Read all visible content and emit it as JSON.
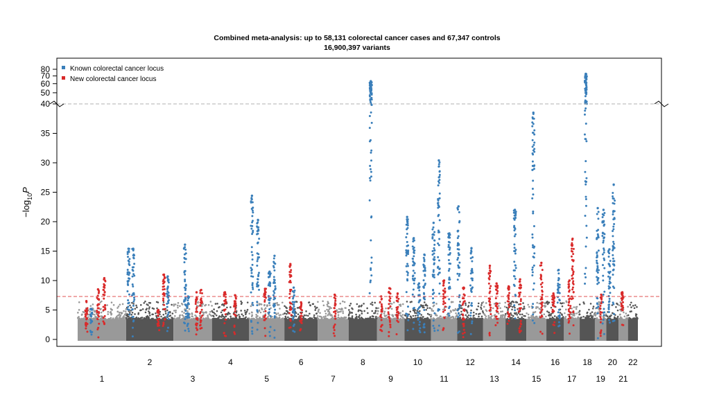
{
  "chart_data": {
    "type": "scatter",
    "subtype": "manhattan",
    "title": "Combined meta-analysis: up to 58,131 colorectal cancer cases and 67,347 controls",
    "subtitle": "16,900,397 variants",
    "ylabel_main": "−log",
    "ylabel_sub": "10",
    "ylabel_tail": "P",
    "y_lower_ticks": [
      "0",
      "5",
      "10",
      "15",
      "20",
      "25",
      "30",
      "35",
      "40"
    ],
    "y_lower_values": [
      0,
      5,
      10,
      15,
      20,
      25,
      30,
      35,
      40
    ],
    "y_upper_ticks": [
      "40",
      "50",
      "60",
      "70",
      "80"
    ],
    "y_upper_values": [
      40,
      50,
      60,
      70,
      80
    ],
    "y_break": 40,
    "y_scale_upper": "log",
    "significance_threshold": 7.3,
    "chromosomes_top": [
      "2",
      "4",
      "6",
      "8",
      "10",
      "12",
      "14",
      "16",
      "18",
      "20",
      "22"
    ],
    "chromosomes_bottom": [
      "1",
      "3",
      "5",
      "7",
      "9",
      "11",
      "13",
      "15",
      "17",
      "19",
      "21"
    ],
    "chromosome_colors": [
      "#999999",
      "#555555"
    ],
    "legend": {
      "position": "top-left",
      "entries": [
        {
          "label": "Known colorectal cancer locus",
          "color": "#3a7fba"
        },
        {
          "label": "New colorectal cancer locus",
          "color": "#d92a2a"
        }
      ]
    },
    "colors": {
      "known": "#3a7fba",
      "new": "#d92a2a",
      "threshold": "#e05050",
      "break_line": "#b0b0b0"
    },
    "loci": [
      {
        "chr": 1,
        "pos": 0.18,
        "p": 6.5,
        "type": "new"
      },
      {
        "chr": 1,
        "pos": 0.28,
        "p": 5.2,
        "type": "known"
      },
      {
        "chr": 1,
        "pos": 0.42,
        "p": 8.5,
        "type": "new"
      },
      {
        "chr": 1,
        "pos": 0.55,
        "p": 10.4,
        "type": "new"
      },
      {
        "chr": 2,
        "pos": 0.05,
        "p": 15.4,
        "type": "known"
      },
      {
        "chr": 2,
        "pos": 0.15,
        "p": 15.4,
        "type": "known"
      },
      {
        "chr": 2,
        "pos": 0.68,
        "p": 5.0,
        "type": "new"
      },
      {
        "chr": 2,
        "pos": 0.8,
        "p": 11.0,
        "type": "new"
      },
      {
        "chr": 2,
        "pos": 0.88,
        "p": 10.7,
        "type": "known"
      },
      {
        "chr": 3,
        "pos": 0.3,
        "p": 16.1,
        "type": "known"
      },
      {
        "chr": 3,
        "pos": 0.38,
        "p": 7.3,
        "type": "known"
      },
      {
        "chr": 3,
        "pos": 0.6,
        "p": 8.0,
        "type": "new"
      },
      {
        "chr": 3,
        "pos": 0.72,
        "p": 8.4,
        "type": "new"
      },
      {
        "chr": 4,
        "pos": 0.35,
        "p": 8.0,
        "type": "new"
      },
      {
        "chr": 4,
        "pos": 0.62,
        "p": 7.5,
        "type": "new"
      },
      {
        "chr": 5,
        "pos": 0.08,
        "p": 24.4,
        "type": "known"
      },
      {
        "chr": 5,
        "pos": 0.25,
        "p": 20.3,
        "type": "known"
      },
      {
        "chr": 5,
        "pos": 0.45,
        "p": 8.6,
        "type": "new"
      },
      {
        "chr": 5,
        "pos": 0.58,
        "p": 11.5,
        "type": "known"
      },
      {
        "chr": 5,
        "pos": 0.72,
        "p": 14.2,
        "type": "known"
      },
      {
        "chr": 6,
        "pos": 0.18,
        "p": 12.8,
        "type": "new"
      },
      {
        "chr": 6,
        "pos": 0.28,
        "p": 8.8,
        "type": "known"
      },
      {
        "chr": 6,
        "pos": 0.5,
        "p": 6.3,
        "type": "new"
      },
      {
        "chr": 7,
        "pos": 0.55,
        "p": 7.6,
        "type": "new"
      },
      {
        "chr": 8,
        "pos": 0.78,
        "p": 63.0,
        "type": "known"
      },
      {
        "chr": 9,
        "pos": 0.15,
        "p": 7.3,
        "type": "new"
      },
      {
        "chr": 9,
        "pos": 0.45,
        "p": 8.7,
        "type": "new"
      },
      {
        "chr": 9,
        "pos": 0.75,
        "p": 7.8,
        "type": "new"
      },
      {
        "chr": 10,
        "pos": 0.1,
        "p": 20.8,
        "type": "known"
      },
      {
        "chr": 10,
        "pos": 0.35,
        "p": 17.2,
        "type": "known"
      },
      {
        "chr": 10,
        "pos": 0.55,
        "p": 9.5,
        "type": "known"
      },
      {
        "chr": 10,
        "pos": 0.75,
        "p": 14.4,
        "type": "known"
      },
      {
        "chr": 11,
        "pos": 0.1,
        "p": 19.8,
        "type": "known"
      },
      {
        "chr": 11,
        "pos": 0.3,
        "p": 30.4,
        "type": "known"
      },
      {
        "chr": 11,
        "pos": 0.5,
        "p": 10.0,
        "type": "new"
      },
      {
        "chr": 11,
        "pos": 0.7,
        "p": 18.0,
        "type": "known"
      },
      {
        "chr": 12,
        "pos": 0.05,
        "p": 22.6,
        "type": "known"
      },
      {
        "chr": 12,
        "pos": 0.25,
        "p": 8.8,
        "type": "new"
      },
      {
        "chr": 12,
        "pos": 0.55,
        "p": 15.5,
        "type": "known"
      },
      {
        "chr": 13,
        "pos": 0.3,
        "p": 12.5,
        "type": "new"
      },
      {
        "chr": 13,
        "pos": 0.6,
        "p": 9.5,
        "type": "new"
      },
      {
        "chr": 14,
        "pos": 0.15,
        "p": 9.0,
        "type": "new"
      },
      {
        "chr": 14,
        "pos": 0.45,
        "p": 22.0,
        "type": "known"
      },
      {
        "chr": 14,
        "pos": 0.7,
        "p": 10.2,
        "type": "new"
      },
      {
        "chr": 15,
        "pos": 0.35,
        "p": 38.5,
        "type": "known"
      },
      {
        "chr": 15,
        "pos": 0.75,
        "p": 13.0,
        "type": "new"
      },
      {
        "chr": 16,
        "pos": 0.4,
        "p": 7.8,
        "type": "new"
      },
      {
        "chr": 16,
        "pos": 0.7,
        "p": 11.8,
        "type": "known"
      },
      {
        "chr": 17,
        "pos": 0.35,
        "p": 10.0,
        "type": "new"
      },
      {
        "chr": 17,
        "pos": 0.55,
        "p": 17.1,
        "type": "new"
      },
      {
        "chr": 18,
        "pos": 0.4,
        "p": 73.0,
        "type": "known"
      },
      {
        "chr": 19,
        "pos": 0.25,
        "p": 22.3,
        "type": "known"
      },
      {
        "chr": 19,
        "pos": 0.55,
        "p": 7.6,
        "type": "new"
      },
      {
        "chr": 19,
        "pos": 0.75,
        "p": 22.0,
        "type": "known"
      },
      {
        "chr": 20,
        "pos": 0.25,
        "p": 15.3,
        "type": "known"
      },
      {
        "chr": 20,
        "pos": 0.6,
        "p": 26.3,
        "type": "known"
      },
      {
        "chr": 21,
        "pos": 0.4,
        "p": 8.0,
        "type": "new"
      }
    ]
  }
}
